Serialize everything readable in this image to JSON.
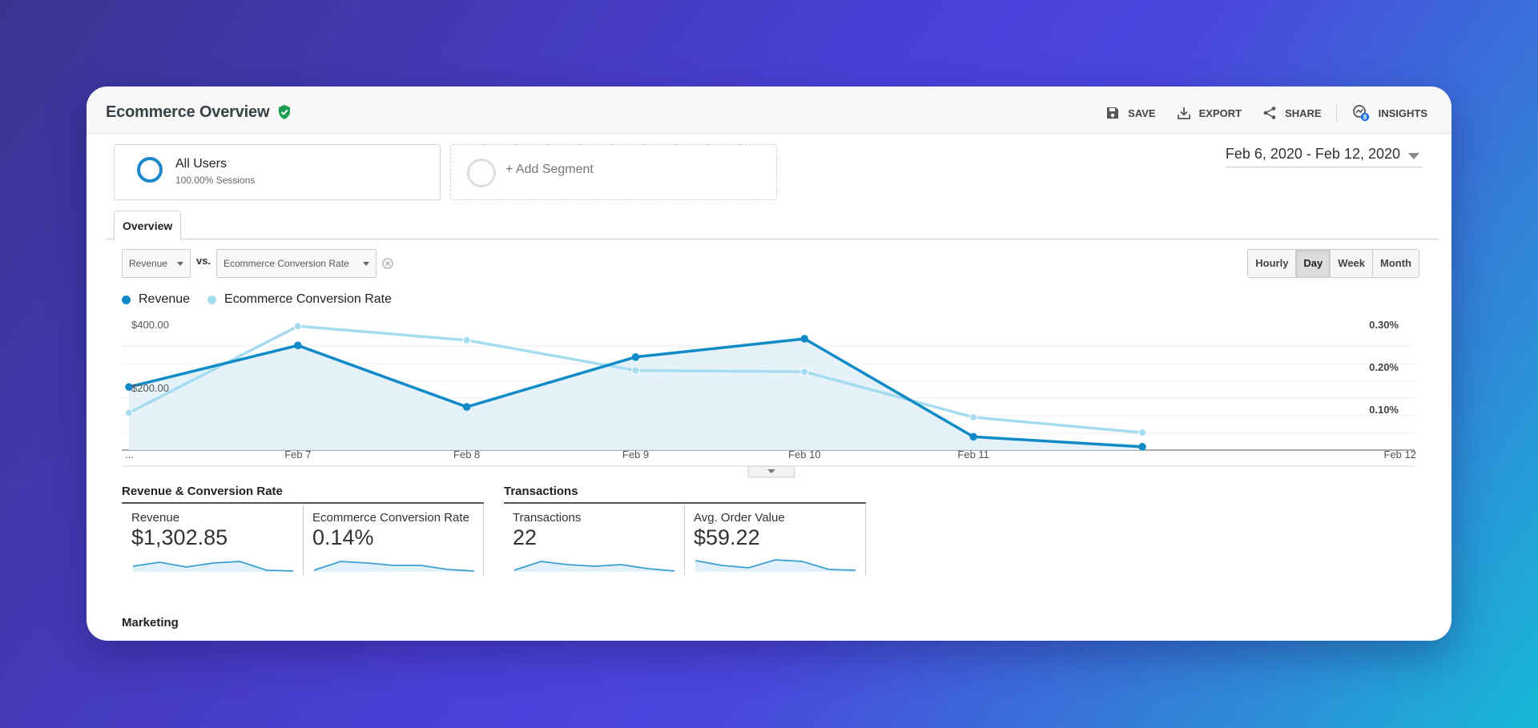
{
  "header": {
    "title": "Ecommerce Overview",
    "actions": [
      {
        "label": "SAVE",
        "icon": "save-icon"
      },
      {
        "label": "EXPORT",
        "icon": "export-icon"
      },
      {
        "label": "SHARE",
        "icon": "share-icon"
      },
      {
        "label": "INSIGHTS",
        "icon": "insights-icon",
        "badge": "8"
      }
    ]
  },
  "segments": {
    "active": {
      "title": "All Users",
      "subtitle": "100.00% Sessions"
    },
    "add_label": "+ Add Segment"
  },
  "date_range": "Feb 6, 2020 - Feb 12, 2020",
  "tabs": {
    "overview": "Overview"
  },
  "controls": {
    "metric1": "Revenue",
    "vs": "vs.",
    "metric2": "Ecommerce Conversion Rate",
    "granularity": [
      "Hourly",
      "Day",
      "Week",
      "Month"
    ],
    "active_granularity": "Day"
  },
  "colors": {
    "revenue": "#118bc7",
    "conversion": "#a6dcf0",
    "area": "#e2f1f9"
  },
  "chart_data": {
    "type": "line",
    "categories": [
      "...",
      "Feb 7",
      "Feb 8",
      "Feb 9",
      "Feb 10",
      "Feb 11",
      "Feb 12"
    ],
    "series": [
      {
        "name": "Revenue",
        "axis": "left",
        "values": [
          190,
          315,
          130,
          280,
          335,
          40,
          10
        ]
      },
      {
        "name": "Ecommerce Conversion Rate",
        "axis": "right",
        "values": [
          0.085,
          0.283,
          0.251,
          0.182,
          0.179,
          0.075,
          0.04
        ]
      }
    ],
    "left_ticks": [
      "$400.00",
      "$200.00"
    ],
    "right_ticks": [
      "0.30%",
      "0.20%",
      "0.10%"
    ],
    "ylim_left": [
      0,
      400
    ],
    "ylim_right": [
      0,
      0.3
    ],
    "grid": true
  },
  "sections": [
    {
      "title": "Revenue & Conversion Rate",
      "metrics": [
        {
          "label": "Revenue",
          "value": "$1,302.85",
          "spark": [
            0.35,
            0.6,
            0.3,
            0.55,
            0.65,
            0.1,
            0.05
          ]
        },
        {
          "label": "Ecommerce Conversion Rate",
          "value": "0.14%",
          "spark": [
            0.1,
            0.65,
            0.55,
            0.4,
            0.4,
            0.15,
            0.05
          ]
        }
      ]
    },
    {
      "title": "Transactions",
      "metrics": [
        {
          "label": "Transactions",
          "value": "22",
          "spark": [
            0.1,
            0.65,
            0.45,
            0.35,
            0.45,
            0.2,
            0.05
          ]
        },
        {
          "label": "Avg. Order Value",
          "value": "$59.22",
          "spark": [
            0.7,
            0.4,
            0.25,
            0.75,
            0.65,
            0.15,
            0.1
          ]
        }
      ]
    }
  ],
  "marketing": {
    "title": "Marketing"
  }
}
